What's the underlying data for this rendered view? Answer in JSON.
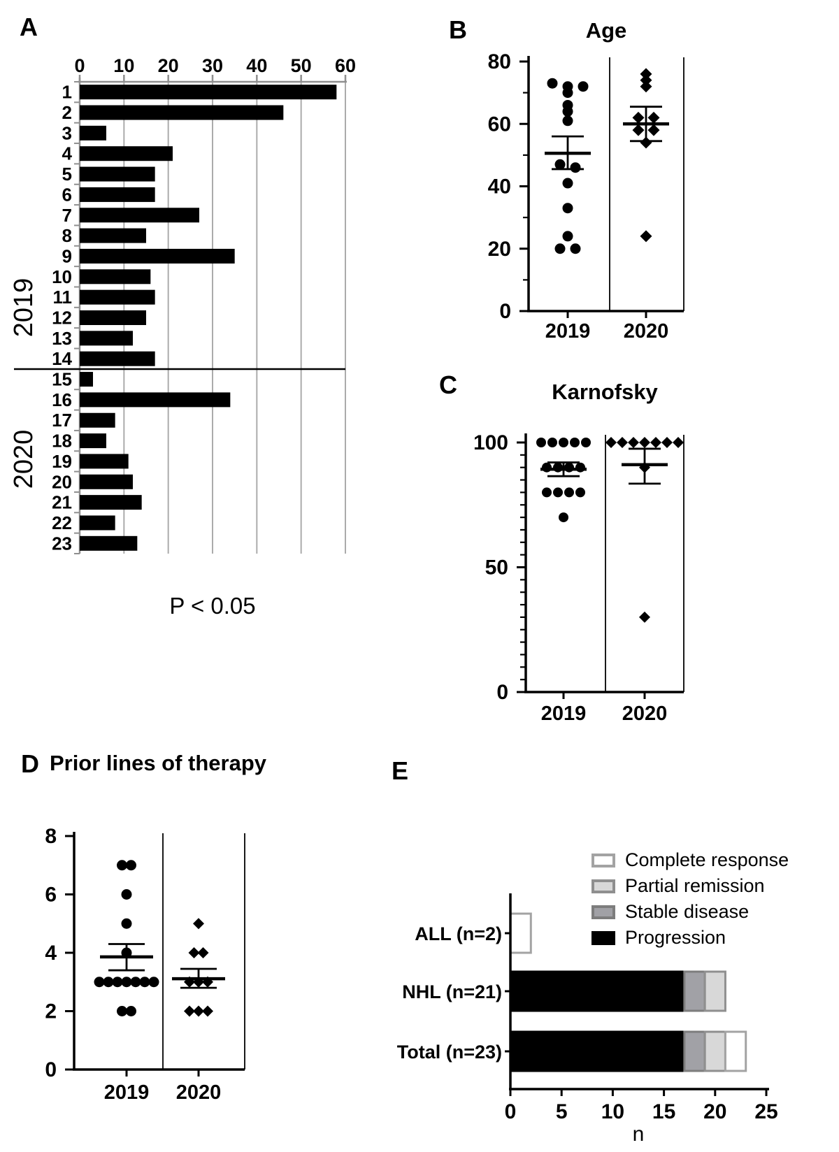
{
  "panels": {
    "A": {
      "letter": "A"
    },
    "B": {
      "letter": "B"
    },
    "C": {
      "letter": "C"
    },
    "D": {
      "letter": "D"
    },
    "E": {
      "letter": "E"
    }
  },
  "chart_data": [
    {
      "id": "A",
      "type": "bar",
      "orientation": "horizontal",
      "categories": [
        "1",
        "2",
        "3",
        "4",
        "5",
        "6",
        "7",
        "8",
        "9",
        "10",
        "11",
        "12",
        "13",
        "14",
        "15",
        "16",
        "17",
        "18",
        "19",
        "20",
        "21",
        "22",
        "23"
      ],
      "values": [
        58,
        46,
        6,
        21,
        17,
        17,
        27,
        15,
        35,
        16,
        17,
        15,
        12,
        17,
        3,
        34,
        8,
        6,
        11,
        12,
        14,
        8,
        13
      ],
      "groups": [
        {
          "label": "2019",
          "from": 1,
          "to": 14
        },
        {
          "label": "2020",
          "from": 15,
          "to": 23
        }
      ],
      "xlim": [
        0,
        60
      ],
      "xticks": [
        0,
        10,
        20,
        30,
        40,
        50,
        60
      ],
      "grid": true,
      "annotation": "P < 0.05",
      "bar_color": "#000000",
      "axis_color": "#8f8f8f",
      "grid_color": "#ababab"
    },
    {
      "id": "B",
      "type": "scatter",
      "title": "Age",
      "categories": [
        "2019",
        "2020"
      ],
      "ylim": [
        0,
        80
      ],
      "yticks": [
        0,
        20,
        40,
        60,
        80
      ],
      "minor_step": 10,
      "series": [
        {
          "name": "2019",
          "marker": "circle",
          "values": [
            73,
            72,
            72,
            70,
            66,
            64,
            61,
            47,
            46,
            41,
            33,
            24,
            20,
            20
          ],
          "mean": 50.6,
          "err_low": 45.5,
          "err_high": 56
        },
        {
          "name": "2020",
          "marker": "diamond",
          "values": [
            76,
            74,
            72,
            62,
            62,
            58,
            58,
            54,
            24
          ],
          "mean": 60,
          "err_low": 54.5,
          "err_high": 65.5
        }
      ]
    },
    {
      "id": "C",
      "type": "scatter",
      "title": "Karnofsky",
      "categories": [
        "2019",
        "2020"
      ],
      "ylim": [
        0,
        100
      ],
      "yticks": [
        0,
        50,
        100
      ],
      "minor_step": 5,
      "series": [
        {
          "name": "2019",
          "marker": "circle",
          "values": [
            100,
            100,
            100,
            100,
            100,
            90,
            90,
            90,
            90,
            80,
            80,
            80,
            80,
            70
          ],
          "mean": 89.3,
          "err_low": 86.5,
          "err_high": 92
        },
        {
          "name": "2020",
          "marker": "diamond",
          "values": [
            100,
            100,
            100,
            100,
            100,
            100,
            100,
            90,
            30
          ],
          "mean": 91.1,
          "err_low": 83.5,
          "err_high": 97.5
        }
      ]
    },
    {
      "id": "D",
      "type": "scatter",
      "title": "Prior lines of therapy",
      "categories": [
        "2019",
        "2020"
      ],
      "ylim": [
        0,
        8
      ],
      "yticks": [
        0,
        2,
        4,
        6,
        8
      ],
      "minor_step": null,
      "series": [
        {
          "name": "2019",
          "marker": "circle",
          "values": [
            7,
            7,
            6,
            5,
            4,
            3,
            3,
            3,
            3,
            3,
            3,
            3,
            2,
            2
          ],
          "mean": 3.86,
          "err_low": 3.4,
          "err_high": 4.3
        },
        {
          "name": "2020",
          "marker": "diamond",
          "values": [
            5,
            4,
            4,
            3,
            3,
            3,
            2,
            2,
            2
          ],
          "mean": 3.11,
          "err_low": 2.8,
          "err_high": 3.45
        }
      ]
    },
    {
      "id": "E",
      "type": "stacked_bar",
      "orientation": "horizontal",
      "categories": [
        "ALL (n=2)",
        "NHL (n=21)",
        "Total (n=23)"
      ],
      "series": [
        {
          "name": "Progression",
          "color": "#000000",
          "border": "#000000",
          "values": [
            0,
            17,
            17
          ]
        },
        {
          "name": "Stable disease",
          "color": "#a1a1a6",
          "border": "#7d7d7d",
          "values": [
            0,
            2,
            2
          ]
        },
        {
          "name": "Partial remission",
          "color": "#d8d8d8",
          "border": "#8f8f8f",
          "values": [
            0,
            2,
            2
          ]
        },
        {
          "name": "Complete response",
          "color": "#ffffff",
          "border": "#a3a3a3",
          "values": [
            2,
            0,
            2
          ]
        }
      ],
      "legend_order": [
        "Complete response",
        "Partial remission",
        "Stable disease",
        "Progression"
      ],
      "xlim": [
        0,
        25
      ],
      "xticks": [
        0,
        5,
        10,
        15,
        20,
        25
      ],
      "xlabel": "n"
    }
  ]
}
